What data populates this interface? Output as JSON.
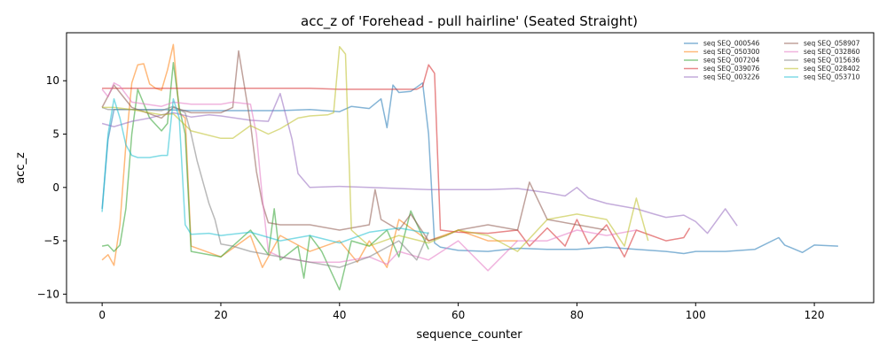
{
  "chart_data": {
    "type": "line",
    "title": "acc_z of 'Forehead - pull hairline' (Seated Straight)",
    "xlabel": "sequence_counter",
    "ylabel": "acc_z",
    "xlim": [
      -6,
      130
    ],
    "ylim": [
      -10.8,
      14.5
    ],
    "xticks": [
      0,
      20,
      40,
      60,
      80,
      100,
      120
    ],
    "yticks": [
      -10,
      -5,
      0,
      5,
      10
    ],
    "grid": false,
    "legend_position": "top-right",
    "series": [
      {
        "name": "seq SEQ_000546",
        "color": "#1f77b4",
        "x": [
          0,
          1,
          2,
          5,
          10,
          15,
          20,
          25,
          30,
          35,
          40,
          42,
          45,
          47,
          48,
          49,
          50,
          52,
          54,
          55,
          56,
          57,
          60,
          65,
          70,
          75,
          80,
          85,
          90,
          95,
          98,
          100,
          105,
          110,
          114,
          115,
          118,
          120,
          124
        ],
        "y": [
          -2.0,
          4.5,
          7.3,
          7.3,
          7.3,
          7.2,
          7.2,
          7.2,
          7.2,
          7.3,
          7.1,
          7.6,
          7.4,
          8.3,
          5.6,
          9.6,
          8.9,
          9.0,
          9.8,
          5.0,
          -5.2,
          -5.6,
          -5.9,
          -6.0,
          -5.7,
          -5.8,
          -5.8,
          -5.6,
          -5.8,
          -6.0,
          -6.2,
          -6.0,
          -6.0,
          -5.8,
          -4.7,
          -5.4,
          -6.1,
          -5.4,
          -5.5
        ]
      },
      {
        "name": "seq SEQ_050300",
        "color": "#ff7f0e",
        "x": [
          0,
          1,
          2,
          3,
          4,
          5,
          6,
          7,
          8,
          9,
          10,
          11,
          12,
          13,
          14,
          15,
          20,
          25,
          27,
          30,
          35,
          40,
          43,
          45,
          48,
          50,
          55,
          60,
          65,
          70
        ],
        "y": [
          -6.8,
          -6.3,
          -7.3,
          -3.5,
          4.0,
          9.8,
          11.5,
          11.6,
          9.7,
          9.3,
          9.1,
          11.0,
          13.4,
          7.0,
          6.5,
          -5.5,
          -6.5,
          -4.5,
          -7.5,
          -4.5,
          -6.0,
          -5.0,
          -7.0,
          -5.0,
          -7.5,
          -3.0,
          -5.0,
          -4.0,
          -5.0,
          -5.0
        ]
      },
      {
        "name": "seq SEQ_007204",
        "color": "#2ca02c",
        "x": [
          0,
          1,
          2,
          3,
          4,
          5,
          6,
          8,
          10,
          11,
          12,
          13,
          14,
          15,
          20,
          25,
          28,
          29,
          30,
          33,
          34,
          35,
          37,
          40,
          42,
          45,
          48,
          50,
          52,
          55
        ],
        "y": [
          -5.5,
          -5.4,
          -6.0,
          -5.4,
          -2.0,
          5.0,
          9.2,
          6.5,
          5.3,
          6.0,
          11.7,
          7.5,
          5.0,
          -6.0,
          -6.5,
          -4.0,
          -6.3,
          -2.0,
          -6.8,
          -5.5,
          -8.5,
          -4.5,
          -6.0,
          -9.6,
          -5.0,
          -5.5,
          -4.0,
          -6.5,
          -2.2,
          -5.8
        ]
      },
      {
        "name": "seq SEQ_039076",
        "color": "#d62728",
        "x": [
          0,
          5,
          10,
          15,
          20,
          25,
          30,
          35,
          40,
          45,
          50,
          53,
          54,
          55,
          56,
          57,
          60,
          65,
          70,
          72,
          75,
          78,
          80,
          82,
          85,
          88,
          90,
          95,
          98,
          99
        ],
        "y": [
          9.3,
          9.3,
          9.3,
          9.3,
          9.3,
          9.3,
          9.3,
          9.3,
          9.2,
          9.2,
          9.2,
          9.2,
          9.5,
          11.5,
          10.7,
          -4.0,
          -4.2,
          -4.3,
          -4.0,
          -5.5,
          -3.8,
          -5.5,
          -3.0,
          -5.3,
          -3.5,
          -6.5,
          -4.0,
          -5.0,
          -4.7,
          -3.8
        ]
      },
      {
        "name": "seq SEQ_003226",
        "color": "#9467bd",
        "x": [
          0,
          2,
          5,
          8,
          10,
          12,
          15,
          18,
          20,
          25,
          28,
          30,
          32,
          33,
          35,
          40,
          45,
          50,
          55,
          60,
          65,
          70,
          75,
          78,
          80,
          82,
          85,
          88,
          90,
          93,
          95,
          98,
          100,
          102,
          105,
          107
        ],
        "y": [
          6.0,
          5.7,
          6.2,
          6.5,
          6.8,
          7.0,
          6.6,
          6.8,
          6.7,
          6.3,
          6.2,
          8.8,
          4.5,
          1.3,
          0.0,
          0.1,
          0.0,
          -0.1,
          -0.2,
          -0.2,
          -0.2,
          -0.1,
          -0.5,
          -0.8,
          0.0,
          -1.0,
          -1.5,
          -1.8,
          -2.0,
          -2.5,
          -2.8,
          -2.6,
          -3.2,
          -4.3,
          -2.0,
          -3.6
        ]
      },
      {
        "name": "seq SEQ_058907",
        "color": "#8c564b",
        "x": [
          0,
          2,
          5,
          10,
          12,
          15,
          20,
          22,
          23,
          25,
          26,
          27,
          28,
          30,
          35,
          40,
          45,
          46,
          47,
          50,
          52,
          55,
          58,
          60,
          65,
          70,
          72,
          75,
          80,
          85
        ],
        "y": [
          7.5,
          9.6,
          7.5,
          6.5,
          7.5,
          7.0,
          7.0,
          7.5,
          12.8,
          6.0,
          1.5,
          -1.5,
          -3.3,
          -3.5,
          -3.5,
          -4.0,
          -3.5,
          -0.2,
          -3.0,
          -4.0,
          -2.5,
          -5.0,
          -4.5,
          -4.0,
          -3.5,
          -4.0,
          0.5,
          -3.0,
          -3.5,
          -4.0
        ]
      },
      {
        "name": "seq SEQ_032860",
        "color": "#e377c2",
        "x": [
          0,
          1,
          2,
          3,
          5,
          10,
          12,
          15,
          20,
          22,
          25,
          26,
          27,
          28,
          30,
          35,
          40,
          45,
          48,
          50,
          55,
          60,
          65,
          70,
          75,
          80,
          85,
          90
        ],
        "y": [
          9.2,
          8.5,
          9.8,
          9.5,
          8.0,
          7.6,
          8.0,
          7.8,
          7.8,
          8.0,
          7.8,
          5.0,
          -1.0,
          -6.0,
          -6.5,
          -7.0,
          -7.0,
          -6.5,
          -7.2,
          -6.0,
          -6.8,
          -5.0,
          -7.8,
          -5.0,
          -5.0,
          -4.0,
          -4.5,
          -4.0
        ]
      },
      {
        "name": "seq SEQ_015636",
        "color": "#7f7f7f",
        "x": [
          0,
          1,
          5,
          10,
          12,
          14,
          15,
          16,
          18,
          19,
          20,
          22,
          25,
          30,
          35,
          40,
          45,
          50,
          53,
          55
        ],
        "y": [
          7.5,
          7.3,
          7.3,
          7.2,
          7.6,
          7.0,
          5.0,
          2.5,
          -1.5,
          -3.0,
          -5.3,
          -5.5,
          -6.0,
          -6.5,
          -7.0,
          -7.5,
          -6.5,
          -5.0,
          -6.8,
          -4.2
        ]
      },
      {
        "name": "seq SEQ_028402",
        "color": "#bcbd22",
        "x": [
          0,
          2,
          5,
          10,
          12,
          15,
          20,
          22,
          25,
          28,
          30,
          33,
          35,
          38,
          39,
          40,
          41,
          42,
          45,
          50,
          55,
          60,
          65,
          70,
          75,
          80,
          85,
          88,
          90,
          92
        ],
        "y": [
          7.5,
          7.5,
          7.3,
          6.8,
          6.9,
          5.3,
          4.6,
          4.6,
          5.8,
          5.0,
          5.5,
          6.5,
          6.7,
          6.8,
          7.0,
          13.2,
          12.5,
          -4.0,
          -5.5,
          -4.5,
          -5.2,
          -4.0,
          -4.5,
          -6.0,
          -3.0,
          -2.5,
          -3.0,
          -5.5,
          -1.0,
          -5.0
        ]
      },
      {
        "name": "seq SEQ_053710",
        "color": "#17becf",
        "x": [
          0,
          1,
          2,
          3,
          4,
          5,
          6,
          8,
          10,
          11,
          12,
          13,
          14,
          15,
          18,
          20,
          25,
          30,
          35,
          40,
          45,
          50,
          55
        ],
        "y": [
          -2.3,
          5.0,
          8.3,
          6.5,
          4.0,
          3.0,
          2.8,
          2.8,
          3.0,
          3.0,
          8.3,
          6.5,
          -3.5,
          -4.4,
          -4.3,
          -4.5,
          -4.2,
          -5.0,
          -4.5,
          -5.2,
          -4.2,
          -3.8,
          -4.3
        ]
      }
    ]
  }
}
